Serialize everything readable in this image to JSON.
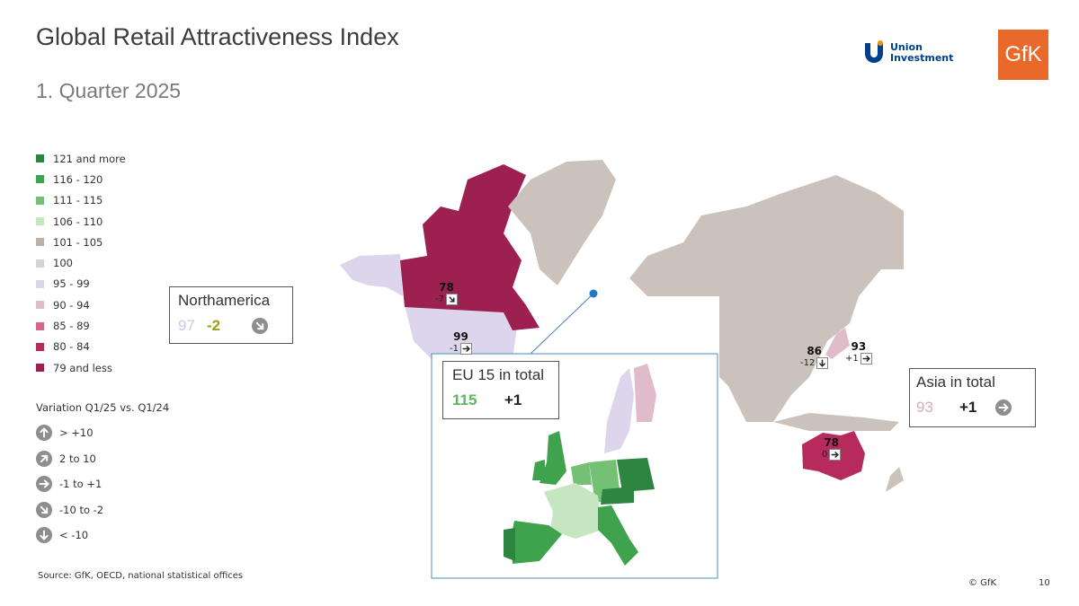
{
  "header": {
    "title": "Global Retail Attractiveness Index",
    "subtitle": "1. Quarter 2025",
    "logos": [
      "Union Investment",
      "GfK"
    ]
  },
  "legend": {
    "items": [
      {
        "label": "121 and more",
        "color": "#2e8540"
      },
      {
        "label": "116 - 120",
        "color": "#3fa34d"
      },
      {
        "label": "111 - 115",
        "color": "#74c075"
      },
      {
        "label": "106 - 110",
        "color": "#c6e6c2"
      },
      {
        "label": "101 - 105",
        "color": "#b9b0a8"
      },
      {
        "label": "100",
        "color": "#d6d2ce"
      },
      {
        "label": "95 - 99",
        "color": "#ddd5ec"
      },
      {
        "label": "90 - 94",
        "color": "#e0bccb"
      },
      {
        "label": "85 - 89",
        "color": "#d3688f"
      },
      {
        "label": "80 - 84",
        "color": "#b72a5c"
      },
      {
        "label": "79 and less",
        "color": "#9c2050"
      }
    ]
  },
  "variation_legend": {
    "title": "Variation Q1/25 vs. Q1/24",
    "items": [
      "> +10",
      "2 to 10",
      "-1 to +1",
      "-10 to -2",
      "< -10"
    ]
  },
  "regions": [
    {
      "name": "Northamerica",
      "index": "97",
      "change": "-2"
    },
    {
      "name": "EU 15 in total",
      "index": "115",
      "change": "+1"
    },
    {
      "name": "Asia in total",
      "index": "93",
      "change": "+1"
    }
  ],
  "countries": [
    {
      "index": "78",
      "change": "-7"
    },
    {
      "index": "99",
      "change": "-1"
    },
    {
      "index": "86",
      "change": "-12"
    },
    {
      "index": "93",
      "change": "+1"
    },
    {
      "index": "78",
      "change": "0"
    }
  ],
  "footer": {
    "source": "Source: GfK, OECD, national statistical offices",
    "copyright": "© GfK",
    "page": "10"
  }
}
